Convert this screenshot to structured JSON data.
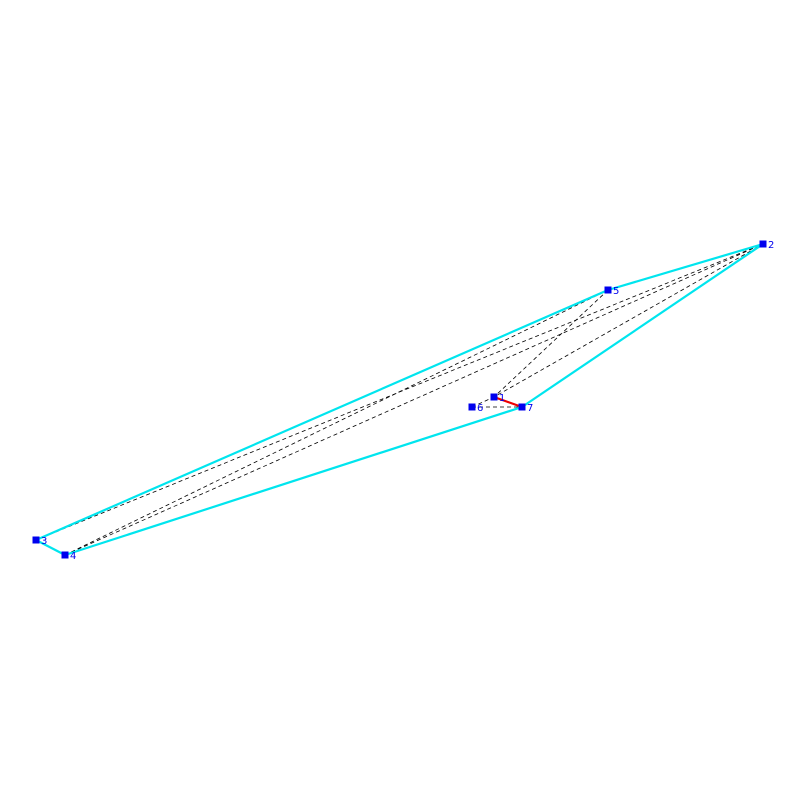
{
  "colors": {
    "hull": "#00e5ee",
    "diagonal": "#000000",
    "highlight": "#ee0000",
    "vertex": "#0000ee",
    "label": "#0000ee"
  },
  "vertices": [
    {
      "id": "1",
      "label": "1"
    },
    {
      "id": "2",
      "label": "2"
    },
    {
      "id": "3",
      "label": "3"
    },
    {
      "id": "4",
      "label": "4"
    },
    {
      "id": "5",
      "label": "5"
    },
    {
      "id": "6",
      "label": "6"
    },
    {
      "id": "7",
      "label": "7"
    }
  ],
  "hull_edges": [
    [
      "2",
      "5"
    ],
    [
      "5",
      "3"
    ],
    [
      "3",
      "4"
    ],
    [
      "4",
      "7"
    ],
    [
      "7",
      "2"
    ]
  ],
  "diagonal_edges": [
    [
      "3",
      "5"
    ],
    [
      "3",
      "2"
    ],
    [
      "4",
      "2"
    ],
    [
      "4",
      "5"
    ],
    [
      "5",
      "1"
    ],
    [
      "2",
      "1"
    ],
    [
      "6",
      "7"
    ],
    [
      "6",
      "1"
    ]
  ],
  "highlight_edges": [
    [
      "1",
      "7"
    ]
  ]
}
